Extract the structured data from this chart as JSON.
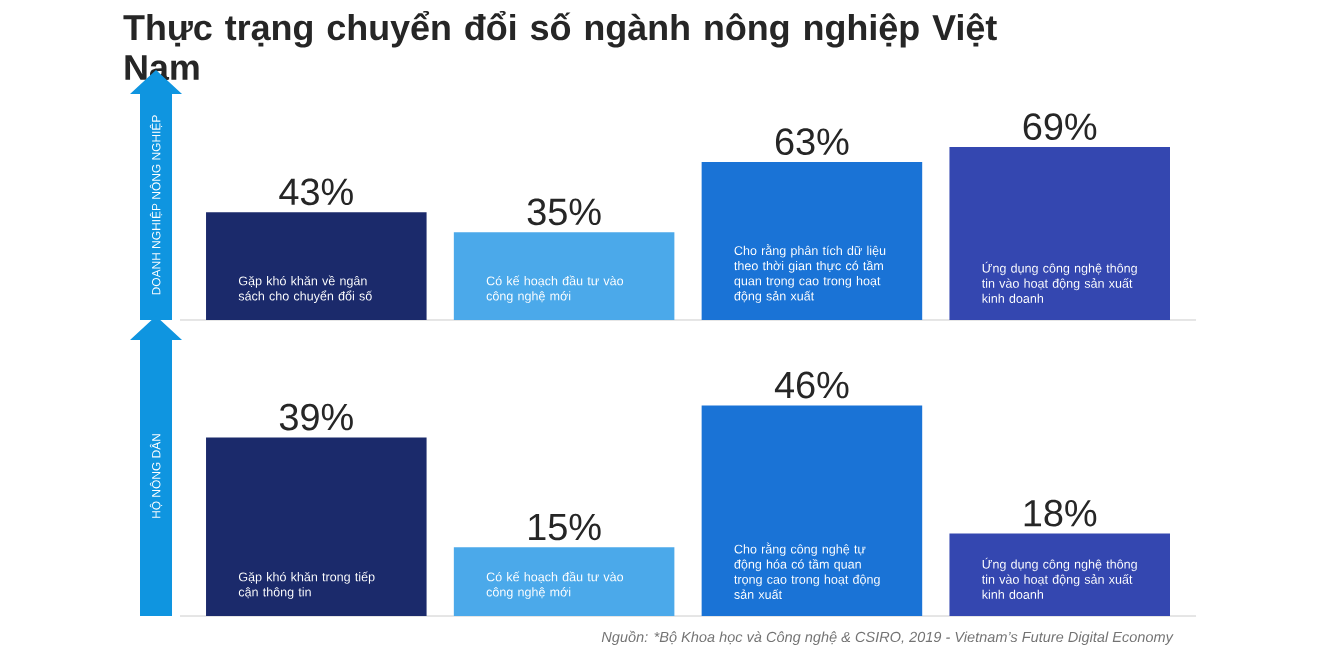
{
  "chart_data": [
    {
      "type": "bar",
      "title": "Thực trạng chuyển đổi số ngành nông nghiệp Việt Nam",
      "ylabel": "DOANH NGHIỆP NÔNG NGHIỆP",
      "categories": [
        "Gặp khó khăn về ngân sách cho chuyển đổi số",
        "Có kế hoạch đầu tư vào công nghệ mới",
        "Cho rằng phân tích dữ liệu theo thời gian thực có tầm quan trọng cao trong hoạt động sản xuất",
        "Ứng dụng công nghệ thông tin vào hoạt động sản xuất kinh doanh"
      ],
      "values": [
        43,
        35,
        63,
        69
      ],
      "colors": [
        "#1b2a6b",
        "#4ba9ea",
        "#1a73d6",
        "#3447b0"
      ],
      "value_labels": [
        "43%",
        "35%",
        "63%",
        "69%"
      ],
      "tick_labels": false
    },
    {
      "type": "bar",
      "ylabel": "HỘ NÔNG DÂN",
      "categories": [
        "Gặp khó khăn trong tiếp cận thông tin",
        "Có kế hoạch đầu tư vào công nghệ mới",
        "Cho rằng công nghệ tự động hóa có tầm quan trọng cao trong hoạt động sản xuất",
        "Ứng dụng công nghệ thông tin vào hoạt động sản xuất kinh doanh"
      ],
      "values": [
        39,
        15,
        46,
        18
      ],
      "colors": [
        "#1b2a6b",
        "#4ba9ea",
        "#1a73d6",
        "#3447b0"
      ],
      "value_labels": [
        "39%",
        "15%",
        "46%",
        "18%"
      ],
      "tick_labels": false,
      "annotations": [
        "Nguồn: *Bộ Khoa học và Công nghệ & CSIRO, 2019 - Vietnam’s Future Digital Economy"
      ]
    }
  ]
}
